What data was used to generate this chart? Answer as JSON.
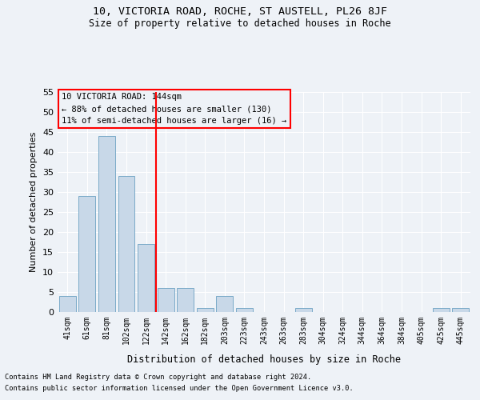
{
  "title1": "10, VICTORIA ROAD, ROCHE, ST AUSTELL, PL26 8JF",
  "title2": "Size of property relative to detached houses in Roche",
  "xlabel": "Distribution of detached houses by size in Roche",
  "ylabel": "Number of detached properties",
  "categories": [
    "41sqm",
    "61sqm",
    "81sqm",
    "102sqm",
    "122sqm",
    "142sqm",
    "162sqm",
    "182sqm",
    "203sqm",
    "223sqm",
    "243sqm",
    "263sqm",
    "283sqm",
    "304sqm",
    "324sqm",
    "344sqm",
    "364sqm",
    "384sqm",
    "405sqm",
    "425sqm",
    "445sqm"
  ],
  "values": [
    4,
    29,
    44,
    34,
    17,
    6,
    6,
    1,
    4,
    1,
    0,
    0,
    1,
    0,
    0,
    0,
    0,
    0,
    0,
    1,
    1
  ],
  "bar_color": "#c8d8e8",
  "bar_edge_color": "#7baac8",
  "vline_color": "red",
  "annotation_title": "10 VICTORIA ROAD: 144sqm",
  "annotation_line1": "← 88% of detached houses are smaller (130)",
  "annotation_line2": "11% of semi-detached houses are larger (16) →",
  "annotation_box_color": "red",
  "ylim": [
    0,
    55
  ],
  "yticks": [
    0,
    5,
    10,
    15,
    20,
    25,
    30,
    35,
    40,
    45,
    50,
    55
  ],
  "footer1": "Contains HM Land Registry data © Crown copyright and database right 2024.",
  "footer2": "Contains public sector information licensed under the Open Government Licence v3.0.",
  "bg_color": "#eef2f7"
}
